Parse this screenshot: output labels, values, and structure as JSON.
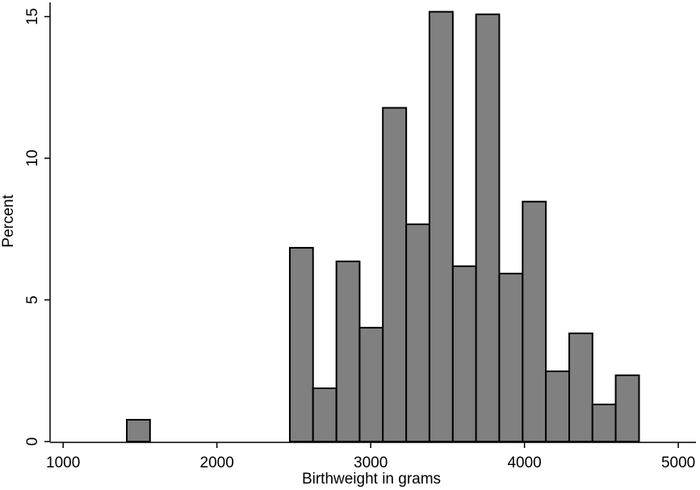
{
  "chart_data": {
    "type": "histogram",
    "x_label": "Birthweight in grams",
    "y_label": "Percent",
    "bins": [
      1414,
      1565,
      1717,
      1868,
      2020,
      2171,
      2322,
      2474,
      2625,
      2777,
      2928,
      3079,
      3231,
      3382,
      3534,
      3685,
      3836,
      3988,
      4139,
      4291,
      4442,
      4593,
      4745
    ],
    "values": [
      0.77,
      0,
      0,
      0,
      0,
      0,
      0,
      6.84,
      1.88,
      6.36,
      4.02,
      11.78,
      7.67,
      15.17,
      6.19,
      15.08,
      5.93,
      8.47,
      2.48,
      3.82,
      1.31,
      2.34
    ],
    "color": "#808080",
    "xlim": [
      915,
      5115
    ],
    "ylim": [
      0,
      15.5
    ],
    "xticks": [
      1000,
      2000,
      3000,
      4000,
      5000
    ],
    "yticks": [
      0,
      5,
      10,
      15
    ]
  }
}
